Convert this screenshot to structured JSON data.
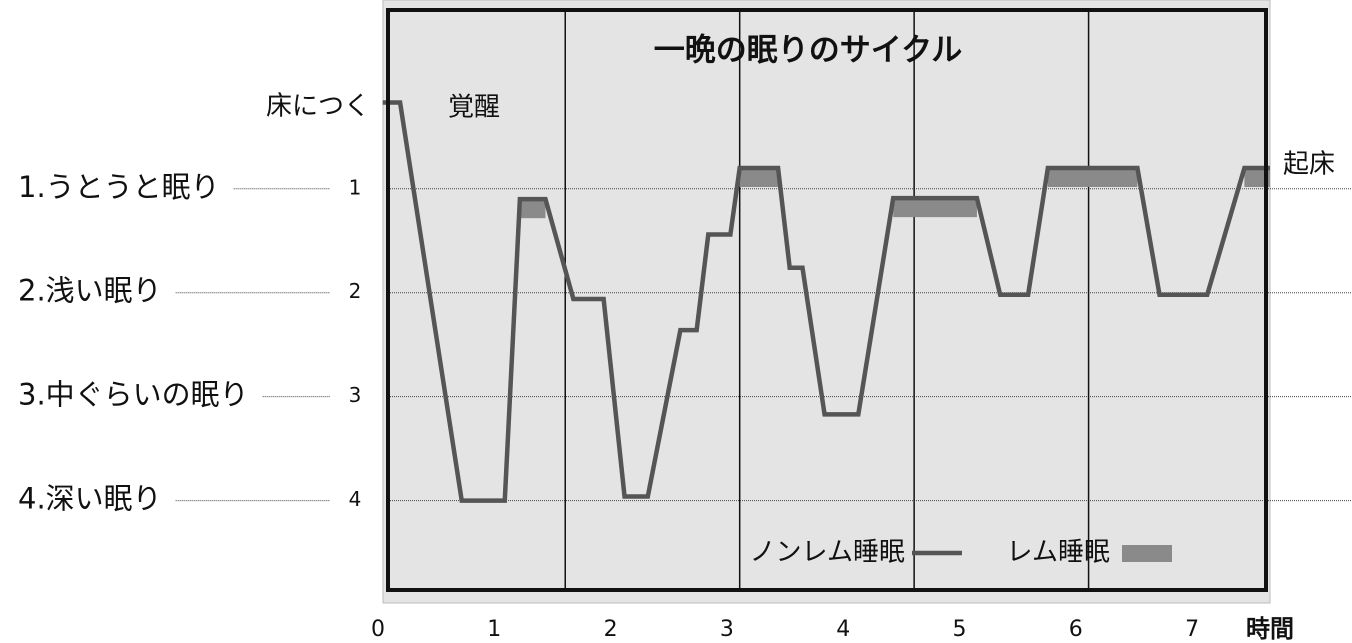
{
  "chart_data": {
    "type": "line",
    "title": "一晩の眠りのサイクル",
    "x_label": "時間",
    "xlim": [
      0,
      7.67
    ],
    "xticks": [
      0,
      1,
      2,
      3,
      4,
      5,
      6,
      7
    ],
    "ylim": [
      -0.72,
      4.86
    ],
    "yticks": [
      1,
      2,
      3,
      4
    ],
    "stage_labels": [
      "1.うとうと眠り",
      "2.浅い眠り",
      "3.中ぐらいの眠り",
      "4.深い眠り"
    ],
    "annotations": [
      "床につく",
      "覚醒",
      "起床"
    ],
    "cycle_lines": [
      1.61,
      3.11,
      4.61,
      6.11
    ],
    "series": [
      {
        "name": "ノンレム睡眠",
        "color": "#555555",
        "x": [
          0.04,
          0.19,
          0.72,
          1.09,
          1.22,
          1.44,
          1.68,
          1.94,
          2.12,
          2.32,
          2.6,
          2.74,
          2.84,
          3.03,
          3.11,
          3.44,
          3.54,
          3.65,
          3.84,
          4.13,
          4.43,
          5.15,
          5.35,
          5.59,
          5.76,
          6.53,
          6.72,
          7.13,
          7.45,
          7.67
        ],
        "values": [
          0.17,
          0.17,
          4,
          4,
          1.1,
          1.1,
          2.06,
          2.06,
          3.96,
          3.96,
          2.36,
          2.36,
          1.44,
          1.44,
          0.8,
          0.8,
          1.76,
          1.76,
          3.17,
          3.17,
          1.09,
          1.09,
          2.02,
          2.02,
          0.8,
          0.8,
          2.02,
          2.02,
          0.8,
          0.8
        ]
      },
      {
        "name": "レム睡眠",
        "color": "#8a8a8a",
        "x_start": [
          1.22,
          3.11,
          4.43,
          5.76,
          7.45
        ],
        "x_end": [
          1.44,
          3.44,
          5.15,
          6.53,
          7.67
        ],
        "values": [
          1.1,
          0.8,
          1.09,
          0.8,
          0.8
        ]
      }
    ]
  }
}
